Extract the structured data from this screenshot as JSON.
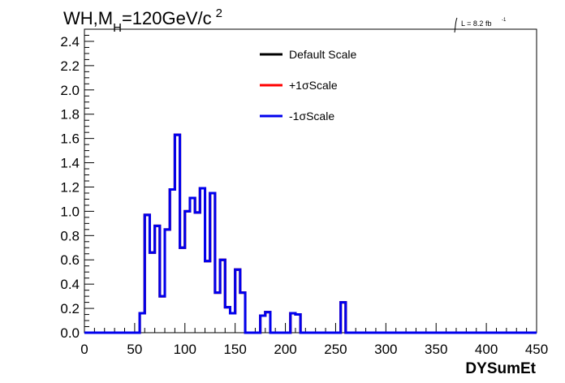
{
  "chart_data": {
    "type": "line",
    "title": "WH,M",
    "title_sub": "H",
    "title_tail": "=120GeV/c",
    "title_sup": "2",
    "lumi_label": "L = 8.2 fb",
    "lumi_sup": "-1",
    "xlabel": "DYSumEt",
    "xlim": [
      0,
      450
    ],
    "ylim": [
      0,
      2.5
    ],
    "xticks": [
      0,
      50,
      100,
      150,
      200,
      250,
      300,
      350,
      400,
      450
    ],
    "xtick_labels": [
      "0",
      "50",
      "100",
      "150",
      "200",
      "250",
      "300",
      "350",
      "400",
      "450"
    ],
    "yticks": [
      0,
      0.2,
      0.4,
      0.6,
      0.8,
      1.0,
      1.2,
      1.4,
      1.6,
      1.8,
      2.0,
      2.2,
      2.4
    ],
    "ytick_labels": [
      "0.0",
      "0.2",
      "0.4",
      "0.6",
      "0.8",
      "1.0",
      "1.2",
      "1.4",
      "1.6",
      "1.8",
      "2.0",
      "2.2",
      "2.4"
    ],
    "grid": false,
    "legend_position": "top-center",
    "bin_edges": [
      0,
      5,
      10,
      15,
      20,
      25,
      30,
      35,
      40,
      45,
      50,
      55,
      60,
      65,
      70,
      75,
      80,
      85,
      90,
      95,
      100,
      105,
      110,
      115,
      120,
      125,
      130,
      135,
      140,
      145,
      150,
      155,
      160,
      165,
      170,
      175,
      180,
      185,
      190,
      195,
      200,
      205,
      210,
      215,
      220,
      225,
      230,
      235,
      240,
      245,
      250,
      255,
      260,
      265,
      270,
      275,
      280,
      285,
      290,
      295,
      300,
      305,
      310,
      315,
      320,
      325,
      330,
      335,
      340,
      345,
      350,
      355,
      360,
      365,
      370,
      375,
      380,
      385,
      390,
      395,
      400,
      405,
      410,
      415,
      420,
      425,
      430,
      435,
      440,
      445,
      450
    ],
    "series": [
      {
        "name": "Default Scale",
        "color": "#000000",
        "values": [
          0,
          0,
          0,
          0,
          0,
          0,
          0,
          0,
          0,
          0,
          0,
          0.16,
          0.97,
          0.66,
          0.88,
          0.3,
          0.85,
          1.18,
          1.63,
          0.7,
          1.0,
          1.11,
          0.99,
          1.19,
          0.59,
          1.15,
          0.33,
          0.6,
          0.21,
          0.16,
          0.52,
          0.33,
          0,
          0,
          0,
          0.14,
          0.17,
          0,
          0,
          0,
          0,
          0.16,
          0.15,
          0,
          0,
          0,
          0,
          0,
          0,
          0,
          0,
          0.25,
          0,
          0,
          0,
          0,
          0,
          0,
          0,
          0,
          0,
          0,
          0,
          0,
          0,
          0,
          0,
          0,
          0,
          0,
          0,
          0,
          0,
          0,
          0,
          0,
          0,
          0,
          0,
          0,
          0,
          0,
          0,
          0,
          0,
          0,
          0,
          0,
          0,
          0
        ]
      },
      {
        "name": "+1σScale",
        "color": "#ff0000",
        "values": [
          0,
          0,
          0,
          0,
          0,
          0,
          0,
          0,
          0,
          0,
          0,
          0.16,
          0.97,
          0.66,
          0.88,
          0.3,
          0.85,
          1.18,
          1.63,
          0.7,
          1.0,
          1.11,
          0.99,
          1.19,
          0.59,
          1.15,
          0.33,
          0.6,
          0.21,
          0.16,
          0.52,
          0.33,
          0,
          0,
          0,
          0.14,
          0.17,
          0,
          0,
          0,
          0,
          0.16,
          0.15,
          0,
          0,
          0,
          0,
          0,
          0,
          0,
          0,
          0.25,
          0,
          0,
          0,
          0,
          0,
          0,
          0,
          0,
          0,
          0,
          0,
          0,
          0,
          0,
          0,
          0,
          0,
          0,
          0,
          0,
          0,
          0,
          0,
          0,
          0,
          0,
          0,
          0,
          0,
          0,
          0,
          0,
          0,
          0,
          0,
          0,
          0,
          0
        ]
      },
      {
        "name": "-1σScale",
        "color": "#0000ee",
        "values": [
          0,
          0,
          0,
          0,
          0,
          0,
          0,
          0,
          0,
          0,
          0,
          0.16,
          0.97,
          0.66,
          0.88,
          0.3,
          0.85,
          1.18,
          1.63,
          0.7,
          1.0,
          1.11,
          0.99,
          1.19,
          0.59,
          1.15,
          0.33,
          0.6,
          0.21,
          0.16,
          0.52,
          0.33,
          0,
          0,
          0,
          0.14,
          0.17,
          0,
          0,
          0,
          0,
          0.16,
          0.15,
          0,
          0,
          0,
          0,
          0,
          0,
          0,
          0,
          0.25,
          0,
          0,
          0,
          0,
          0,
          0,
          0,
          0,
          0,
          0,
          0,
          0,
          0,
          0,
          0,
          0,
          0,
          0,
          0,
          0,
          0,
          0,
          0,
          0,
          0,
          0,
          0,
          0,
          0,
          0,
          0,
          0,
          0,
          0,
          0,
          0,
          0,
          0
        ]
      }
    ]
  }
}
